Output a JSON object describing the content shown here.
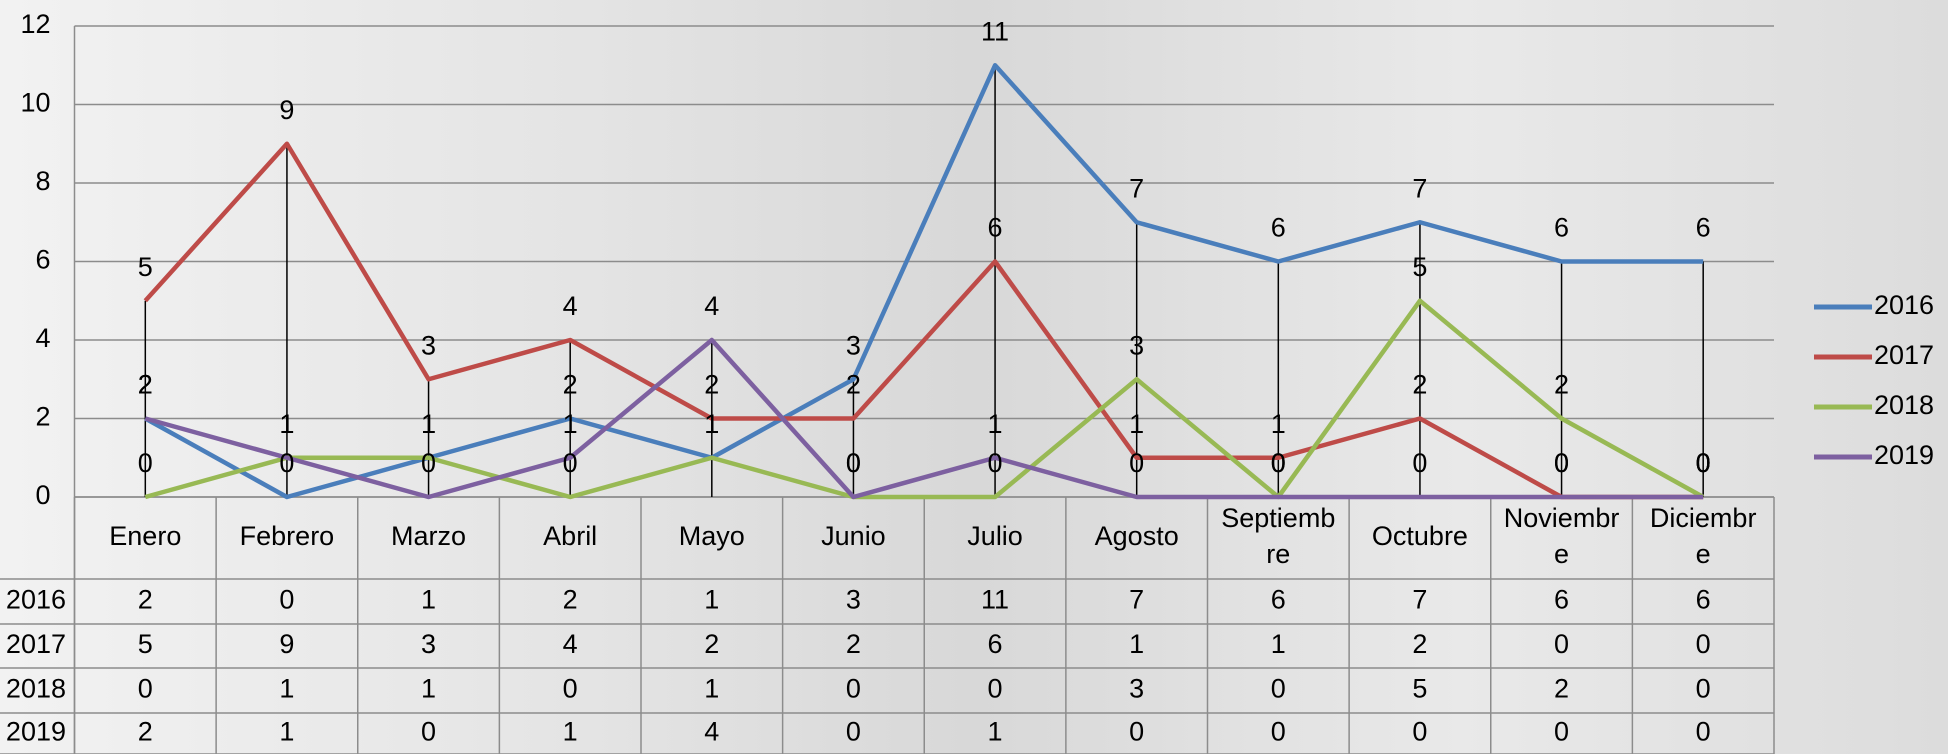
{
  "chart_data": {
    "type": "line",
    "categories": [
      "Enero",
      "Febrero",
      "Marzo",
      "Abril",
      "Mayo",
      "Junio",
      "Julio",
      "Agosto",
      "Septiembre",
      "Octubre",
      "Noviembre",
      "Diciembre"
    ],
    "series": [
      {
        "name": "2016",
        "color": "#4a7ebb",
        "values": [
          2,
          0,
          1,
          2,
          1,
          3,
          11,
          7,
          6,
          7,
          6,
          6
        ]
      },
      {
        "name": "2017",
        "color": "#be4b48",
        "values": [
          5,
          9,
          3,
          4,
          2,
          2,
          6,
          1,
          1,
          2,
          0,
          0
        ]
      },
      {
        "name": "2018",
        "color": "#98b954",
        "values": [
          0,
          1,
          1,
          0,
          1,
          0,
          0,
          3,
          0,
          5,
          2,
          0
        ]
      },
      {
        "name": "2019",
        "color": "#7d60a0",
        "values": [
          2,
          1,
          0,
          1,
          4,
          0,
          1,
          0,
          0,
          0,
          0,
          0
        ]
      }
    ],
    "ylim": [
      0,
      12
    ],
    "yticks": [
      0,
      2,
      4,
      6,
      8,
      10,
      12
    ],
    "grid": true,
    "legend": "right"
  }
}
